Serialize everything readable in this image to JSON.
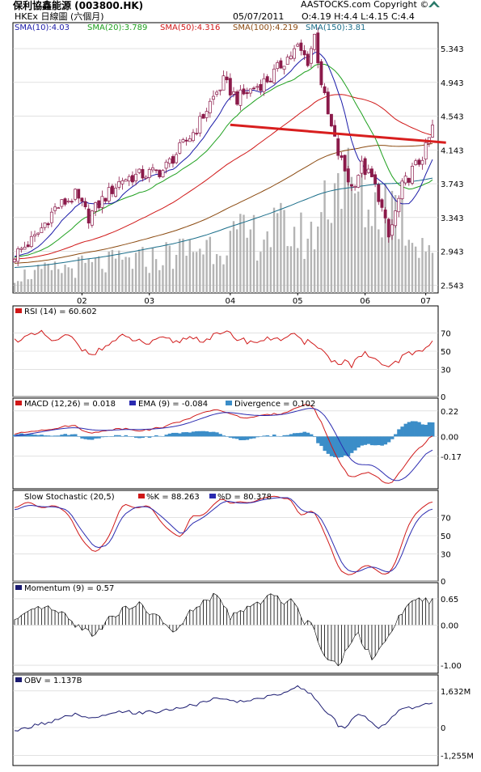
{
  "header": {
    "title": "保利協鑫能源 (003800.HK)",
    "subtitle": "HKEx 日線圖 (六個月)",
    "date": "05/07/2011",
    "ohlc": "O:4.19 H:4.4 L:4.15 C:4.4",
    "brand": "AASTOCKS.com Copyright ©"
  },
  "colors": {
    "up": "#ffffff",
    "down": "#8b1a4a",
    "sma10": "#1a1aa8",
    "sma20": "#1ea01e",
    "sma50": "#d01818",
    "sma100": "#8b4a10",
    "sma150": "#1a6e8a",
    "volume": "#b4b4b4",
    "trendline": "#d81e1e",
    "macd": "#d01818",
    "ema": "#2a2ab0",
    "divergence": "#3b8dc8",
    "stochK": "#d01818",
    "stochD": "#2a2ab0",
    "momentum": "#000000",
    "obv": "#1a1a70"
  },
  "chart_data": [
    {
      "type": "candlestick",
      "title": "保利協鑫能源 (003800.HK)",
      "x_tick_labels": [
        "02",
        "03",
        "04",
        "05",
        "06",
        "07"
      ],
      "x_tick_positions": [
        20,
        40,
        64,
        84,
        104,
        122
      ],
      "y_ticks": [
        2.543,
        2.943,
        3.343,
        3.743,
        4.143,
        4.543,
        4.943,
        5.343
      ],
      "ylim": [
        2.45,
        5.65
      ],
      "n_sessions": 125,
      "price_anchors": [
        [
          0,
          2.9
        ],
        [
          6,
          3.1
        ],
        [
          12,
          3.45
        ],
        [
          18,
          3.6
        ],
        [
          22,
          3.35
        ],
        [
          26,
          3.55
        ],
        [
          32,
          3.8
        ],
        [
          38,
          3.85
        ],
        [
          44,
          3.9
        ],
        [
          48,
          4.1
        ],
        [
          54,
          4.4
        ],
        [
          58,
          4.7
        ],
        [
          62,
          4.95
        ],
        [
          66,
          4.75
        ],
        [
          72,
          4.9
        ],
        [
          76,
          5.0
        ],
        [
          80,
          5.2
        ],
        [
          84,
          5.35
        ],
        [
          87,
          5.2
        ],
        [
          89,
          5.5
        ],
        [
          91,
          4.95
        ],
        [
          93,
          4.55
        ],
        [
          96,
          4.1
        ],
        [
          98,
          3.9
        ],
        [
          100,
          3.7
        ],
        [
          103,
          3.95
        ],
        [
          106,
          3.8
        ],
        [
          108,
          3.6
        ],
        [
          111,
          3.1
        ],
        [
          113,
          3.4
        ],
        [
          115,
          3.7
        ],
        [
          118,
          3.9
        ],
        [
          120,
          4.0
        ],
        [
          122,
          4.15
        ],
        [
          124,
          4.4
        ]
      ],
      "sma_legend": [
        {
          "name": "SMA(10):4.03",
          "value": 4.03
        },
        {
          "name": "SMA(20):3.789",
          "value": 3.789
        },
        {
          "name": "SMA(50):4.316",
          "value": 4.316
        },
        {
          "name": "SMA(100):4.219",
          "value": 4.219
        },
        {
          "name": "SMA(150):3.81",
          "value": 3.81
        }
      ],
      "trendline": {
        "from": [
          64,
          4.44
        ],
        "to": [
          128,
          4.23
        ]
      }
    },
    {
      "type": "line",
      "name": "RSI (14) = 60.602",
      "y_ticks": [
        0,
        30,
        50,
        70
      ],
      "ylim": [
        0,
        100
      ],
      "anchors": [
        [
          0,
          62
        ],
        [
          4,
          66
        ],
        [
          8,
          70
        ],
        [
          12,
          60
        ],
        [
          16,
          68
        ],
        [
          20,
          52
        ],
        [
          24,
          48
        ],
        [
          28,
          58
        ],
        [
          32,
          66
        ],
        [
          36,
          62
        ],
        [
          40,
          58
        ],
        [
          44,
          64
        ],
        [
          48,
          60
        ],
        [
          52,
          66
        ],
        [
          56,
          62
        ],
        [
          60,
          68
        ],
        [
          64,
          70
        ],
        [
          66,
          64
        ],
        [
          70,
          60
        ],
        [
          74,
          62
        ],
        [
          78,
          66
        ],
        [
          80,
          62
        ],
        [
          82,
          70
        ],
        [
          84,
          64
        ],
        [
          86,
          58
        ],
        [
          88,
          62
        ],
        [
          90,
          56
        ],
        [
          92,
          48
        ],
        [
          94,
          40
        ],
        [
          96,
          36
        ],
        [
          98,
          40
        ],
        [
          100,
          34
        ],
        [
          102,
          42
        ],
        [
          104,
          48
        ],
        [
          106,
          40
        ],
        [
          108,
          38
        ],
        [
          110,
          32
        ],
        [
          112,
          36
        ],
        [
          114,
          40
        ],
        [
          116,
          46
        ],
        [
          118,
          48
        ],
        [
          120,
          50
        ],
        [
          122,
          54
        ],
        [
          124,
          60.6
        ]
      ]
    },
    {
      "type": "line",
      "name": "MACD (12,26) = 0.018",
      "ema_name": "EMA (9) = -0.084",
      "divergence_name": "Divergence = 0.102",
      "y_ticks": [
        0.22,
        0.0,
        -0.17
      ],
      "ylim": [
        -0.45,
        0.33
      ],
      "macd_anchors": [
        [
          0,
          0.02
        ],
        [
          6,
          0.05
        ],
        [
          12,
          0.07
        ],
        [
          18,
          0.1
        ],
        [
          22,
          0.02
        ],
        [
          26,
          0.05
        ],
        [
          32,
          0.07
        ],
        [
          38,
          0.05
        ],
        [
          44,
          0.08
        ],
        [
          50,
          0.14
        ],
        [
          56,
          0.2
        ],
        [
          60,
          0.24
        ],
        [
          64,
          0.19
        ],
        [
          68,
          0.16
        ],
        [
          72,
          0.17
        ],
        [
          76,
          0.19
        ],
        [
          80,
          0.2
        ],
        [
          84,
          0.26
        ],
        [
          88,
          0.28
        ],
        [
          90,
          0.18
        ],
        [
          92,
          0.06
        ],
        [
          94,
          -0.08
        ],
        [
          96,
          -0.2
        ],
        [
          98,
          -0.3
        ],
        [
          100,
          -0.36
        ],
        [
          102,
          -0.34
        ],
        [
          104,
          -0.3
        ],
        [
          106,
          -0.32
        ],
        [
          108,
          -0.36
        ],
        [
          110,
          -0.42
        ],
        [
          112,
          -0.4
        ],
        [
          114,
          -0.32
        ],
        [
          116,
          -0.24
        ],
        [
          118,
          -0.16
        ],
        [
          120,
          -0.1
        ],
        [
          122,
          -0.05
        ],
        [
          124,
          0.018
        ]
      ],
      "ema_anchors": [
        [
          0,
          0.0
        ],
        [
          6,
          0.03
        ],
        [
          12,
          0.06
        ],
        [
          18,
          0.08
        ],
        [
          22,
          0.06
        ],
        [
          26,
          0.05
        ],
        [
          32,
          0.06
        ],
        [
          38,
          0.06
        ],
        [
          44,
          0.07
        ],
        [
          50,
          0.1
        ],
        [
          56,
          0.16
        ],
        [
          60,
          0.2
        ],
        [
          64,
          0.21
        ],
        [
          68,
          0.19
        ],
        [
          72,
          0.18
        ],
        [
          76,
          0.18
        ],
        [
          80,
          0.19
        ],
        [
          84,
          0.22
        ],
        [
          88,
          0.25
        ],
        [
          90,
          0.24
        ],
        [
          92,
          0.19
        ],
        [
          94,
          0.1
        ],
        [
          96,
          -0.02
        ],
        [
          98,
          -0.13
        ],
        [
          100,
          -0.22
        ],
        [
          102,
          -0.25
        ],
        [
          104,
          -0.24
        ],
        [
          106,
          -0.24
        ],
        [
          108,
          -0.27
        ],
        [
          110,
          -0.34
        ],
        [
          112,
          -0.38
        ],
        [
          114,
          -0.39
        ],
        [
          116,
          -0.36
        ],
        [
          118,
          -0.3
        ],
        [
          120,
          -0.22
        ],
        [
          122,
          -0.15
        ],
        [
          124,
          -0.084
        ]
      ]
    },
    {
      "type": "line",
      "name": "Slow Stochastic (20,5)",
      "k_name": "%K = 88.263",
      "d_name": "%D = 80.378",
      "y_ticks": [
        0,
        30,
        50,
        70
      ],
      "ylim": [
        0,
        100
      ],
      "k_anchors": [
        [
          0,
          80
        ],
        [
          4,
          88
        ],
        [
          8,
          80
        ],
        [
          12,
          84
        ],
        [
          16,
          74
        ],
        [
          20,
          45
        ],
        [
          24,
          30
        ],
        [
          28,
          48
        ],
        [
          32,
          86
        ],
        [
          36,
          80
        ],
        [
          40,
          84
        ],
        [
          44,
          62
        ],
        [
          48,
          50
        ],
        [
          50,
          48
        ],
        [
          52,
          72
        ],
        [
          56,
          72
        ],
        [
          60,
          88
        ],
        [
          62,
          92
        ],
        [
          64,
          84
        ],
        [
          66,
          88
        ],
        [
          70,
          86
        ],
        [
          74,
          92
        ],
        [
          78,
          94
        ],
        [
          80,
          90
        ],
        [
          82,
          92
        ],
        [
          84,
          74
        ],
        [
          86,
          72
        ],
        [
          88,
          80
        ],
        [
          90,
          70
        ],
        [
          92,
          52
        ],
        [
          94,
          36
        ],
        [
          96,
          14
        ],
        [
          98,
          8
        ],
        [
          100,
          6
        ],
        [
          102,
          12
        ],
        [
          104,
          18
        ],
        [
          106,
          16
        ],
        [
          108,
          10
        ],
        [
          110,
          6
        ],
        [
          112,
          12
        ],
        [
          114,
          30
        ],
        [
          116,
          54
        ],
        [
          118,
          70
        ],
        [
          120,
          78
        ],
        [
          122,
          84
        ],
        [
          124,
          88.3
        ]
      ],
      "d_anchors": [
        [
          0,
          78
        ],
        [
          4,
          84
        ],
        [
          8,
          82
        ],
        [
          12,
          82
        ],
        [
          16,
          78
        ],
        [
          20,
          55
        ],
        [
          24,
          36
        ],
        [
          28,
          40
        ],
        [
          32,
          72
        ],
        [
          36,
          82
        ],
        [
          40,
          82
        ],
        [
          44,
          70
        ],
        [
          48,
          56
        ],
        [
          50,
          50
        ],
        [
          52,
          62
        ],
        [
          56,
          70
        ],
        [
          60,
          82
        ],
        [
          62,
          88
        ],
        [
          64,
          88
        ],
        [
          66,
          86
        ],
        [
          70,
          86
        ],
        [
          74,
          90
        ],
        [
          78,
          92
        ],
        [
          80,
          92
        ],
        [
          82,
          92
        ],
        [
          84,
          82
        ],
        [
          86,
          76
        ],
        [
          88,
          76
        ],
        [
          90,
          74
        ],
        [
          92,
          62
        ],
        [
          94,
          46
        ],
        [
          96,
          28
        ],
        [
          98,
          14
        ],
        [
          100,
          10
        ],
        [
          102,
          10
        ],
        [
          104,
          14
        ],
        [
          106,
          16
        ],
        [
          108,
          14
        ],
        [
          110,
          10
        ],
        [
          112,
          10
        ],
        [
          114,
          20
        ],
        [
          116,
          40
        ],
        [
          118,
          58
        ],
        [
          120,
          70
        ],
        [
          122,
          76
        ],
        [
          124,
          80.4
        ]
      ]
    },
    {
      "type": "bar",
      "name": "Momentum (9) = 0.57",
      "y_ticks": [
        0.65,
        0.0,
        -1.0
      ],
      "ylim": [
        -1.2,
        1.05
      ],
      "anchors": [
        [
          0,
          0.1
        ],
        [
          4,
          0.25
        ],
        [
          8,
          0.45
        ],
        [
          12,
          0.35
        ],
        [
          16,
          0.15
        ],
        [
          20,
          -0.1
        ],
        [
          24,
          -0.25
        ],
        [
          28,
          0.2
        ],
        [
          32,
          0.35
        ],
        [
          36,
          0.55
        ],
        [
          40,
          0.3
        ],
        [
          44,
          0.1
        ],
        [
          48,
          -0.2
        ],
        [
          52,
          0.3
        ],
        [
          56,
          0.55
        ],
        [
          60,
          0.75
        ],
        [
          62,
          0.5
        ],
        [
          64,
          0.2
        ],
        [
          68,
          0.35
        ],
        [
          72,
          0.55
        ],
        [
          76,
          0.7
        ],
        [
          80,
          0.6
        ],
        [
          82,
          0.65
        ],
        [
          84,
          0.4
        ],
        [
          86,
          0.1
        ],
        [
          88,
          0.05
        ],
        [
          90,
          -0.4
        ],
        [
          92,
          -0.7
        ],
        [
          94,
          -0.85
        ],
        [
          96,
          -1.05
        ],
        [
          98,
          -0.7
        ],
        [
          100,
          -0.35
        ],
        [
          102,
          -0.2
        ],
        [
          104,
          -0.55
        ],
        [
          106,
          -0.8
        ],
        [
          108,
          -0.6
        ],
        [
          110,
          -0.4
        ],
        [
          112,
          -0.15
        ],
        [
          114,
          0.15
        ],
        [
          116,
          0.35
        ],
        [
          118,
          0.6
        ],
        [
          120,
          0.75
        ],
        [
          122,
          0.6
        ],
        [
          124,
          0.57
        ]
      ]
    },
    {
      "type": "line",
      "name": "OBV = 1.137B",
      "y_ticks": [
        "1,632M",
        "0",
        "-1,255M"
      ],
      "y_tick_values": [
        1632,
        0,
        -1255
      ],
      "ylim": [
        -1700,
        2350
      ],
      "anchors": [
        [
          0,
          -200
        ],
        [
          6,
          100
        ],
        [
          12,
          300
        ],
        [
          18,
          600
        ],
        [
          22,
          350
        ],
        [
          26,
          500
        ],
        [
          32,
          700
        ],
        [
          38,
          650
        ],
        [
          44,
          750
        ],
        [
          50,
          900
        ],
        [
          56,
          1100
        ],
        [
          60,
          1300
        ],
        [
          64,
          1200
        ],
        [
          68,
          1150
        ],
        [
          72,
          1300
        ],
        [
          76,
          1400
        ],
        [
          80,
          1550
        ],
        [
          84,
          1900
        ],
        [
          86,
          1650
        ],
        [
          88,
          1500
        ],
        [
          90,
          1150
        ],
        [
          92,
          800
        ],
        [
          94,
          500
        ],
        [
          96,
          100
        ],
        [
          98,
          -100
        ],
        [
          100,
          350
        ],
        [
          102,
          600
        ],
        [
          104,
          550
        ],
        [
          106,
          250
        ],
        [
          108,
          -50
        ],
        [
          110,
          200
        ],
        [
          112,
          500
        ],
        [
          114,
          700
        ],
        [
          116,
          850
        ],
        [
          118,
          900
        ],
        [
          120,
          1000
        ],
        [
          122,
          1000
        ],
        [
          124,
          1137
        ]
      ]
    }
  ]
}
